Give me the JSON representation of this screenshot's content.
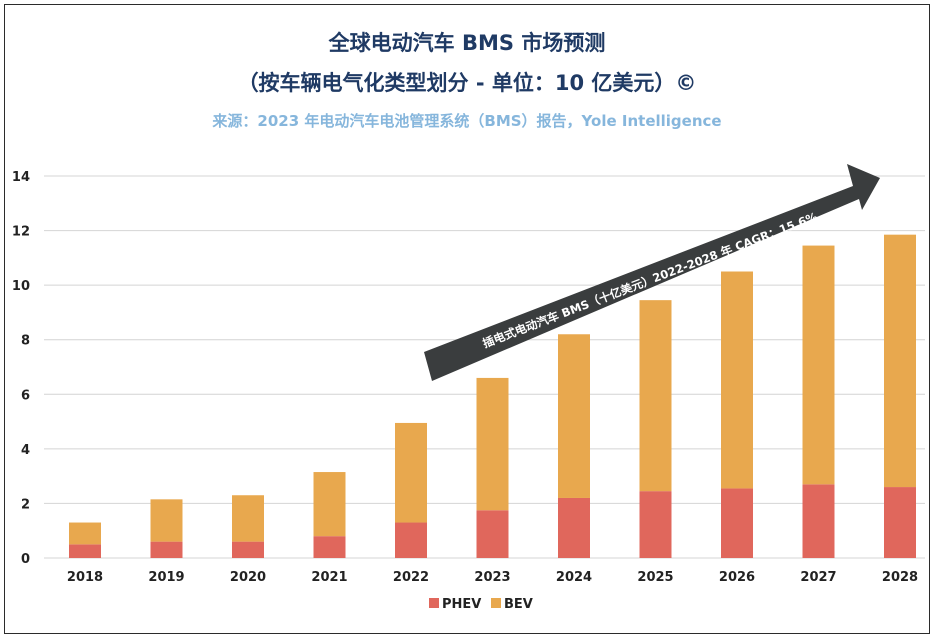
{
  "header": {
    "title": "全球电动汽车 BMS 市场预测",
    "subtitle": "（按车辆电气化类型划分 - 单位：10 亿美元）©",
    "source": "来源：2023 年电动汽车电池管理系统（BMS）报告，Yole Intelligence"
  },
  "chart_data": {
    "type": "bar",
    "stacked": true,
    "categories": [
      "2018",
      "2019",
      "2020",
      "2021",
      "2022",
      "2023",
      "2024",
      "2025",
      "2026",
      "2027",
      "2028"
    ],
    "series": [
      {
        "name": "PHEV",
        "color": "#e0675c",
        "values": [
          0.5,
          0.6,
          0.6,
          0.8,
          1.3,
          1.75,
          2.2,
          2.45,
          2.55,
          2.7,
          2.6
        ]
      },
      {
        "name": "BEV",
        "color": "#e8a84e",
        "values": [
          0.8,
          1.55,
          1.7,
          2.35,
          3.65,
          4.85,
          6.0,
          7.0,
          7.95,
          8.75,
          9.25
        ]
      }
    ],
    "y_ticks": [
      "0",
      "2",
      "4",
      "6",
      "8",
      "10",
      "12",
      "14"
    ],
    "ylim": [
      0,
      14
    ],
    "grid": true,
    "legend_position": "bottom-center",
    "annotation": "插电式电动汽车 BMS（十亿美元）2022-2028 年 CAGR：15.6%"
  },
  "colors": {
    "title": "#1f3a64",
    "source": "#86b6dc",
    "phev": "#e0675c",
    "bev": "#e8a84e",
    "arrow": "#3a3d3e",
    "grid": "#d4d4d4"
  }
}
